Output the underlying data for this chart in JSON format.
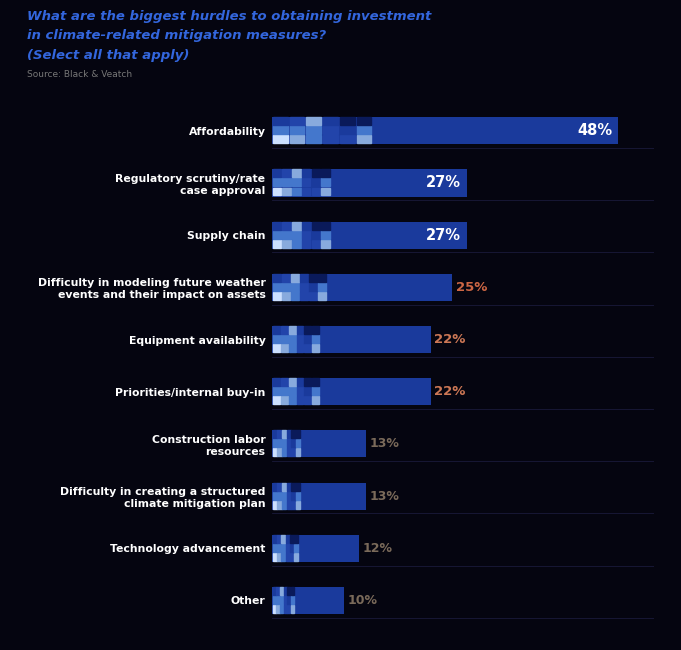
{
  "title_line1": "What are the biggest hurdles to obtaining investment",
  "title_line2": "in climate-related mitigation measures?",
  "title_line3": "(Select all that apply)",
  "source": "Source: Black & Veatch",
  "background_color": "#050510",
  "categories": [
    "Affordability",
    "Regulatory scrutiny/rate\ncase approval",
    "Supply chain",
    "Difficulty in modeling future weather\nevents and their impact on assets",
    "Equipment availability",
    "Priorities/internal buy-in",
    "Construction labor\nresources",
    "Difficulty in creating a structured\nclimate mitigation plan",
    "Technology advancement",
    "Other"
  ],
  "values": [
    48,
    27,
    27,
    25,
    22,
    22,
    13,
    13,
    12,
    10
  ],
  "bar_color_main": "#1a3a9c",
  "bar_color_light": "#4477cc",
  "pixel_color_light": "#88aadd",
  "pixel_color_white": "#cce0ff",
  "title_color": "#3366dd",
  "label_color_white": "#ffffff",
  "label_color_outside": "#7a6a5a",
  "source_color": "#777777",
  "max_value": 50
}
